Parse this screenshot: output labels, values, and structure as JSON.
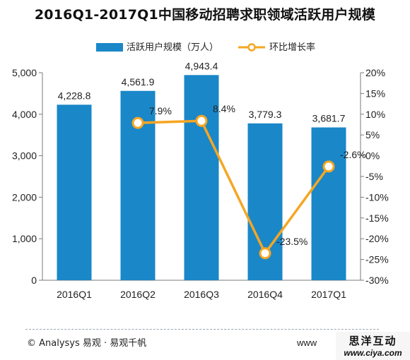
{
  "chart_data": {
    "type": "bar",
    "title": "2016Q1-2017Q1中国移动招聘求职领域活跃用户规模",
    "categories": [
      "2016Q1",
      "2016Q2",
      "2016Q3",
      "2016Q4",
      "2017Q1"
    ],
    "series": [
      {
        "name": "活跃用户规模（万人）",
        "type": "bar",
        "axis": "left",
        "values": [
          4228.8,
          4561.9,
          4943.4,
          3779.3,
          3681.7
        ],
        "labels": [
          "4,228.8",
          "4,561.9",
          "4,943.4",
          "3,779.3",
          "3,681.7"
        ],
        "color": "#1a87c8"
      },
      {
        "name": "环比增长率",
        "type": "line",
        "axis": "right",
        "values": [
          null,
          7.9,
          8.4,
          -23.5,
          -2.6
        ],
        "labels": [
          "",
          "7.9%",
          "8.4%",
          "-23.5%",
          "-2.6%"
        ],
        "color": "#f5a623"
      }
    ],
    "y_left": {
      "range": [
        0,
        5000
      ],
      "ticks": [
        "0",
        "1,000",
        "2,000",
        "3,000",
        "4,000",
        "5,000"
      ]
    },
    "y_right": {
      "range": [
        -30,
        20
      ],
      "ticks": [
        "-30%",
        "-25%",
        "-20%",
        "-15%",
        "-10%",
        "-5%",
        "0%",
        "5%",
        "10%",
        "15%",
        "20%"
      ]
    },
    "grid": false,
    "legend": "top"
  },
  "footer": {
    "source": "© Analysys 易观 · 易观千帆",
    "url_fragment": "www",
    "site_name": "思洋互动",
    "site_url": "www.ciya.com"
  }
}
